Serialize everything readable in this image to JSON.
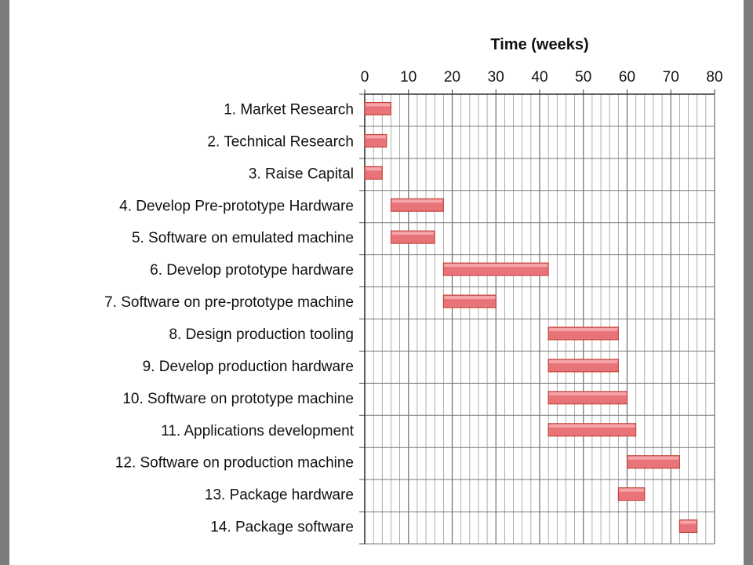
{
  "chart_data": {
    "type": "bar",
    "orientation": "horizontal-gantt",
    "title": "",
    "xlabel": "Time (weeks)",
    "ylabel": "",
    "xlim": [
      0,
      80
    ],
    "x_ticks": [
      0,
      10,
      20,
      30,
      40,
      50,
      60,
      70,
      80
    ],
    "x_axis_position": "top",
    "grid": true,
    "minor_grid_step": 2,
    "legend": "none",
    "bar_color": "#e8747a",
    "categories": [
      "1. Market Research",
      "2. Technical Research",
      "3. Raise Capital",
      "4. Develop Pre-prototype Hardware",
      "5. Software on emulated machine",
      "6. Develop prototype hardware",
      "7. Software on pre-prototype machine",
      "8. Design production tooling",
      "9. Develop production hardware",
      "10. Software on prototype machine",
      "11. Applications development",
      "12. Software on production machine",
      "13. Package hardware",
      "14. Package software"
    ],
    "start": [
      0,
      0,
      0,
      6,
      6,
      18,
      18,
      42,
      42,
      42,
      42,
      60,
      58,
      72
    ],
    "end": [
      6,
      5,
      4,
      18,
      16,
      42,
      30,
      58,
      58,
      60,
      62,
      72,
      64,
      76
    ]
  }
}
